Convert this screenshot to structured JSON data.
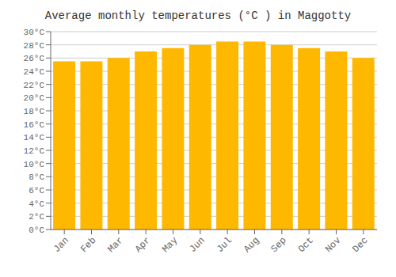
{
  "chart_data": {
    "type": "bar",
    "title": "Average monthly temperatures (°C ) in Maggotty",
    "categories": [
      "Jan",
      "Feb",
      "Mar",
      "Apr",
      "May",
      "Jun",
      "Jul",
      "Aug",
      "Sep",
      "Oct",
      "Nov",
      "Dec"
    ],
    "values": [
      25.5,
      25.5,
      26.0,
      27.0,
      27.5,
      28.0,
      28.5,
      28.5,
      28.0,
      27.5,
      27.0,
      26.0
    ],
    "color": "#FFB800",
    "ylim": [
      0,
      30
    ],
    "yticks": [
      {
        "value": 0,
        "label": "0°C"
      },
      {
        "value": 2,
        "label": "2°C"
      },
      {
        "value": 4,
        "label": "4°C"
      },
      {
        "value": 6,
        "label": "6°C"
      },
      {
        "value": 8,
        "label": "8°C"
      },
      {
        "value": 10,
        "label": "10°C"
      },
      {
        "value": 12,
        "label": "12°C"
      },
      {
        "value": 14,
        "label": "14°C"
      },
      {
        "value": 16,
        "label": "16°C"
      },
      {
        "value": 18,
        "label": "18°C"
      },
      {
        "value": 20,
        "label": "20°C"
      },
      {
        "value": 22,
        "label": "22°C"
      },
      {
        "value": 24,
        "label": "24°C"
      },
      {
        "value": 26,
        "label": "26°C"
      },
      {
        "value": 28,
        "label": "28°C"
      },
      {
        "value": 30,
        "label": "30°C"
      }
    ],
    "grid": true
  }
}
